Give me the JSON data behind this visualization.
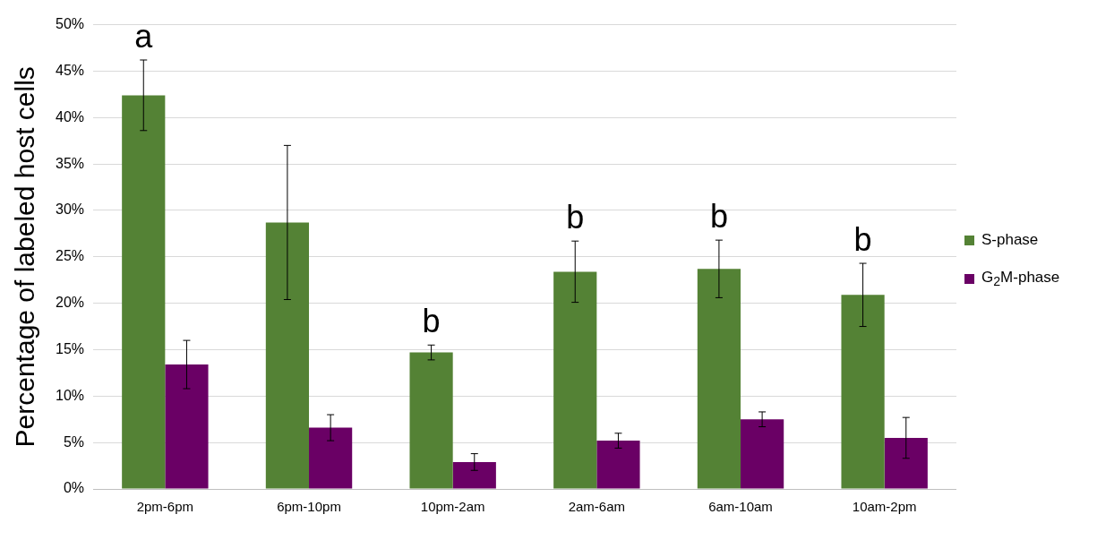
{
  "chart_data": {
    "type": "bar",
    "ylabel": "Percentage of labeled host cells",
    "categories": [
      "2pm-6pm",
      "6pm-10pm",
      "10pm-2am",
      "2am-6am",
      "6am-10am",
      "10am-2pm"
    ],
    "series": [
      {
        "name": "S-phase",
        "color": "#548235",
        "values": [
          42.4,
          28.7,
          14.7,
          23.4,
          23.7,
          20.9
        ],
        "errors": [
          3.8,
          8.3,
          0.8,
          3.3,
          3.1,
          3.4
        ]
      },
      {
        "name": "G$_{2}$M-phase",
        "color": "#6a0065",
        "values": [
          13.4,
          6.6,
          2.9,
          5.2,
          7.5,
          5.5
        ],
        "errors": [
          2.6,
          1.4,
          0.9,
          0.8,
          0.8,
          2.2
        ]
      }
    ],
    "ylim": [
      0,
      50
    ],
    "yticks": [
      {
        "value": 0,
        "label": "0%"
      },
      {
        "value": 5,
        "label": "5%"
      },
      {
        "value": 10,
        "label": "10%"
      },
      {
        "value": 15,
        "label": "15%"
      },
      {
        "value": 20,
        "label": "20%"
      },
      {
        "value": 25,
        "label": "25%"
      },
      {
        "value": 30,
        "label": "30%"
      },
      {
        "value": 35,
        "label": "35%"
      },
      {
        "value": 40,
        "label": "40%"
      },
      {
        "value": 45,
        "label": "45%"
      },
      {
        "value": 50,
        "label": "50%"
      }
    ],
    "grid": "y",
    "legend": "right",
    "annotations": [
      {
        "text": "a",
        "x": "2pm-6pm",
        "y": 42.4
      },
      {
        "text": "b",
        "x": "10pm-2am",
        "y": 14.7
      },
      {
        "text": "b",
        "x": "2am-6am",
        "y": 23.4
      },
      {
        "text": "b",
        "x": "6am-10am",
        "y": 23.7
      },
      {
        "text": "b",
        "x": "10am-2pm",
        "y": 20.9
      }
    ]
  }
}
